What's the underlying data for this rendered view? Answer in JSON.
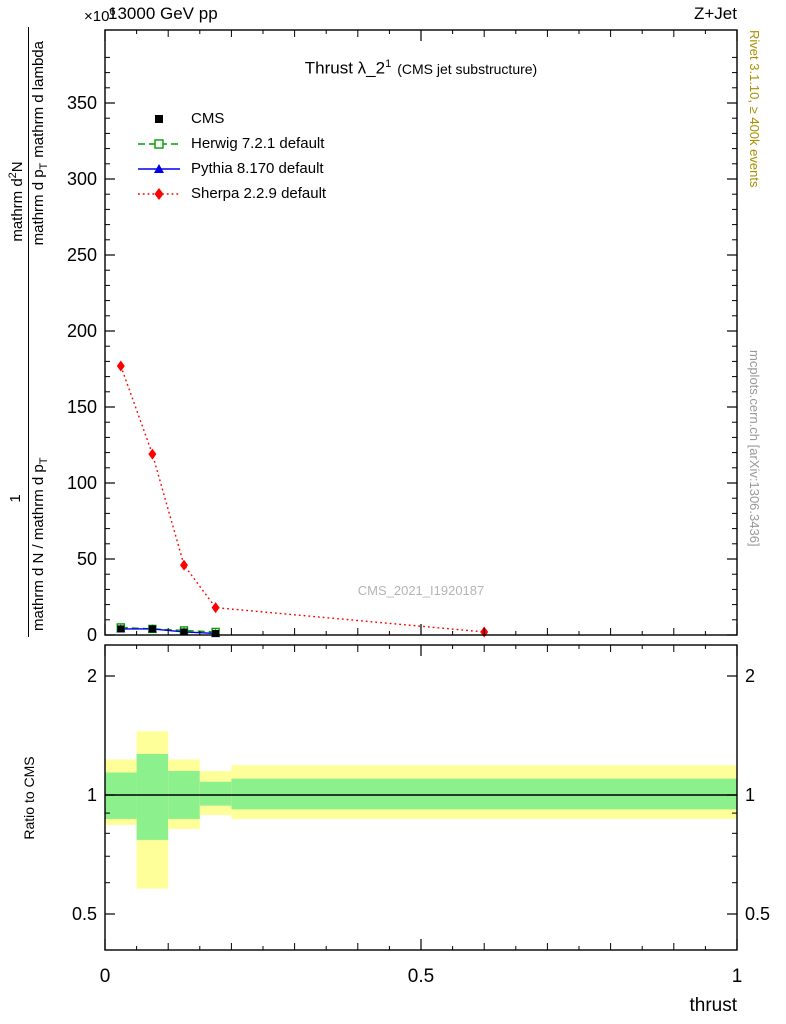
{
  "header": {
    "left": "13000 GeV pp",
    "right": "Z+Jet",
    "y_scale_main": "×10",
    "y_scale_sup": "6"
  },
  "title": {
    "main": "Thrust λ_2",
    "sup": "1",
    "paren": "(CMS jet substructure)"
  },
  "watermark": "CMS_2021_I1920187",
  "side_notes": {
    "rivet": "Rivet 3.1.10, ≥ 400k events",
    "mcplots": "mcplots.cern.ch [arXiv:1306.3436]"
  },
  "ylabel": {
    "num_left": "1",
    "num_right_main": "mathrm d",
    "num_right_sup": "2",
    "num_right_end": "N",
    "den_left_main": "mathrm d N / mathrm d p",
    "den_left_sub": "T",
    "den_right_main": "mathrm d p",
    "den_right_sub": "T",
    "den_right_tail": "mathrm d lambda"
  },
  "ratio_ylabel": "Ratio to CMS",
  "xlabel": "thrust",
  "colors": {
    "yellow_band": "#ffff99",
    "green_band": "#8cf08c",
    "rivet_note": "#a89000",
    "gray_note": "#999999",
    "watermark": "#b4b4b4"
  },
  "legend": [
    {
      "label": "CMS",
      "marker": "square",
      "line": "none",
      "color": "#000000"
    },
    {
      "label": "Herwig 7.2.1 default",
      "marker": "open-square",
      "line": "dashed",
      "color": "#00a000"
    },
    {
      "label": "Pythia 8.170 default",
      "marker": "triangle",
      "line": "solid",
      "color": "#0000ee"
    },
    {
      "label": "Sherpa 2.2.9 default",
      "marker": "diamond",
      "line": "dotted",
      "color": "#ff0000"
    }
  ],
  "chart_data": [
    {
      "type": "line",
      "panel": "main",
      "title": "Thrust λ_2^1 (CMS jet substructure)",
      "xlabel": "thrust",
      "ylabel": "1/(dN/dp_T) d²N/(dp_T dλ)",
      "y_scale_factor": "×10⁶",
      "xlim": [
        0,
        1
      ],
      "ylim": [
        0,
        398
      ],
      "yticks": [
        0,
        50,
        100,
        150,
        200,
        250,
        300,
        350
      ],
      "xticks": [
        0,
        0.5,
        1
      ],
      "grid": false,
      "legend_position": "upper-left",
      "series": [
        {
          "name": "CMS",
          "x": [
            0.025,
            0.075,
            0.125,
            0.175
          ],
          "y": [
            4,
            4,
            2,
            1
          ]
        },
        {
          "name": "Herwig 7.2.1 default",
          "x": [
            0.025,
            0.075,
            0.125,
            0.175
          ],
          "y": [
            5,
            4,
            3,
            2
          ]
        },
        {
          "name": "Pythia 8.170 default",
          "x": [
            0.025,
            0.075,
            0.125,
            0.175
          ],
          "y": [
            4,
            4,
            2,
            1
          ]
        },
        {
          "name": "Sherpa 2.2.9 default",
          "x": [
            0.025,
            0.075,
            0.125,
            0.175,
            0.6
          ],
          "y": [
            177,
            119,
            46,
            18,
            2
          ]
        }
      ]
    },
    {
      "type": "band",
      "panel": "ratio",
      "ylabel": "Ratio to CMS",
      "yscale": "log",
      "ylim": [
        0.41,
        2.42
      ],
      "yticks": [
        2,
        1,
        0.5
      ],
      "xticks": [
        0,
        0.5,
        1
      ],
      "reference_line": 1,
      "bands": [
        {
          "x0": 0,
          "x1": 0.05,
          "yellow": [
            0.84,
            1.23
          ],
          "green": [
            0.87,
            1.14
          ]
        },
        {
          "x0": 0.05,
          "x1": 0.1,
          "yellow": [
            0.58,
            1.45
          ],
          "green": [
            0.77,
            1.27
          ]
        },
        {
          "x0": 0.1,
          "x1": 0.15,
          "yellow": [
            0.82,
            1.23
          ],
          "green": [
            0.87,
            1.15
          ]
        },
        {
          "x0": 0.15,
          "x1": 0.2,
          "yellow": [
            0.89,
            1.15
          ],
          "green": [
            0.94,
            1.08
          ]
        },
        {
          "x0": 0.2,
          "x1": 1.0,
          "yellow": [
            0.87,
            1.19
          ],
          "green": [
            0.92,
            1.1
          ]
        }
      ]
    }
  ]
}
